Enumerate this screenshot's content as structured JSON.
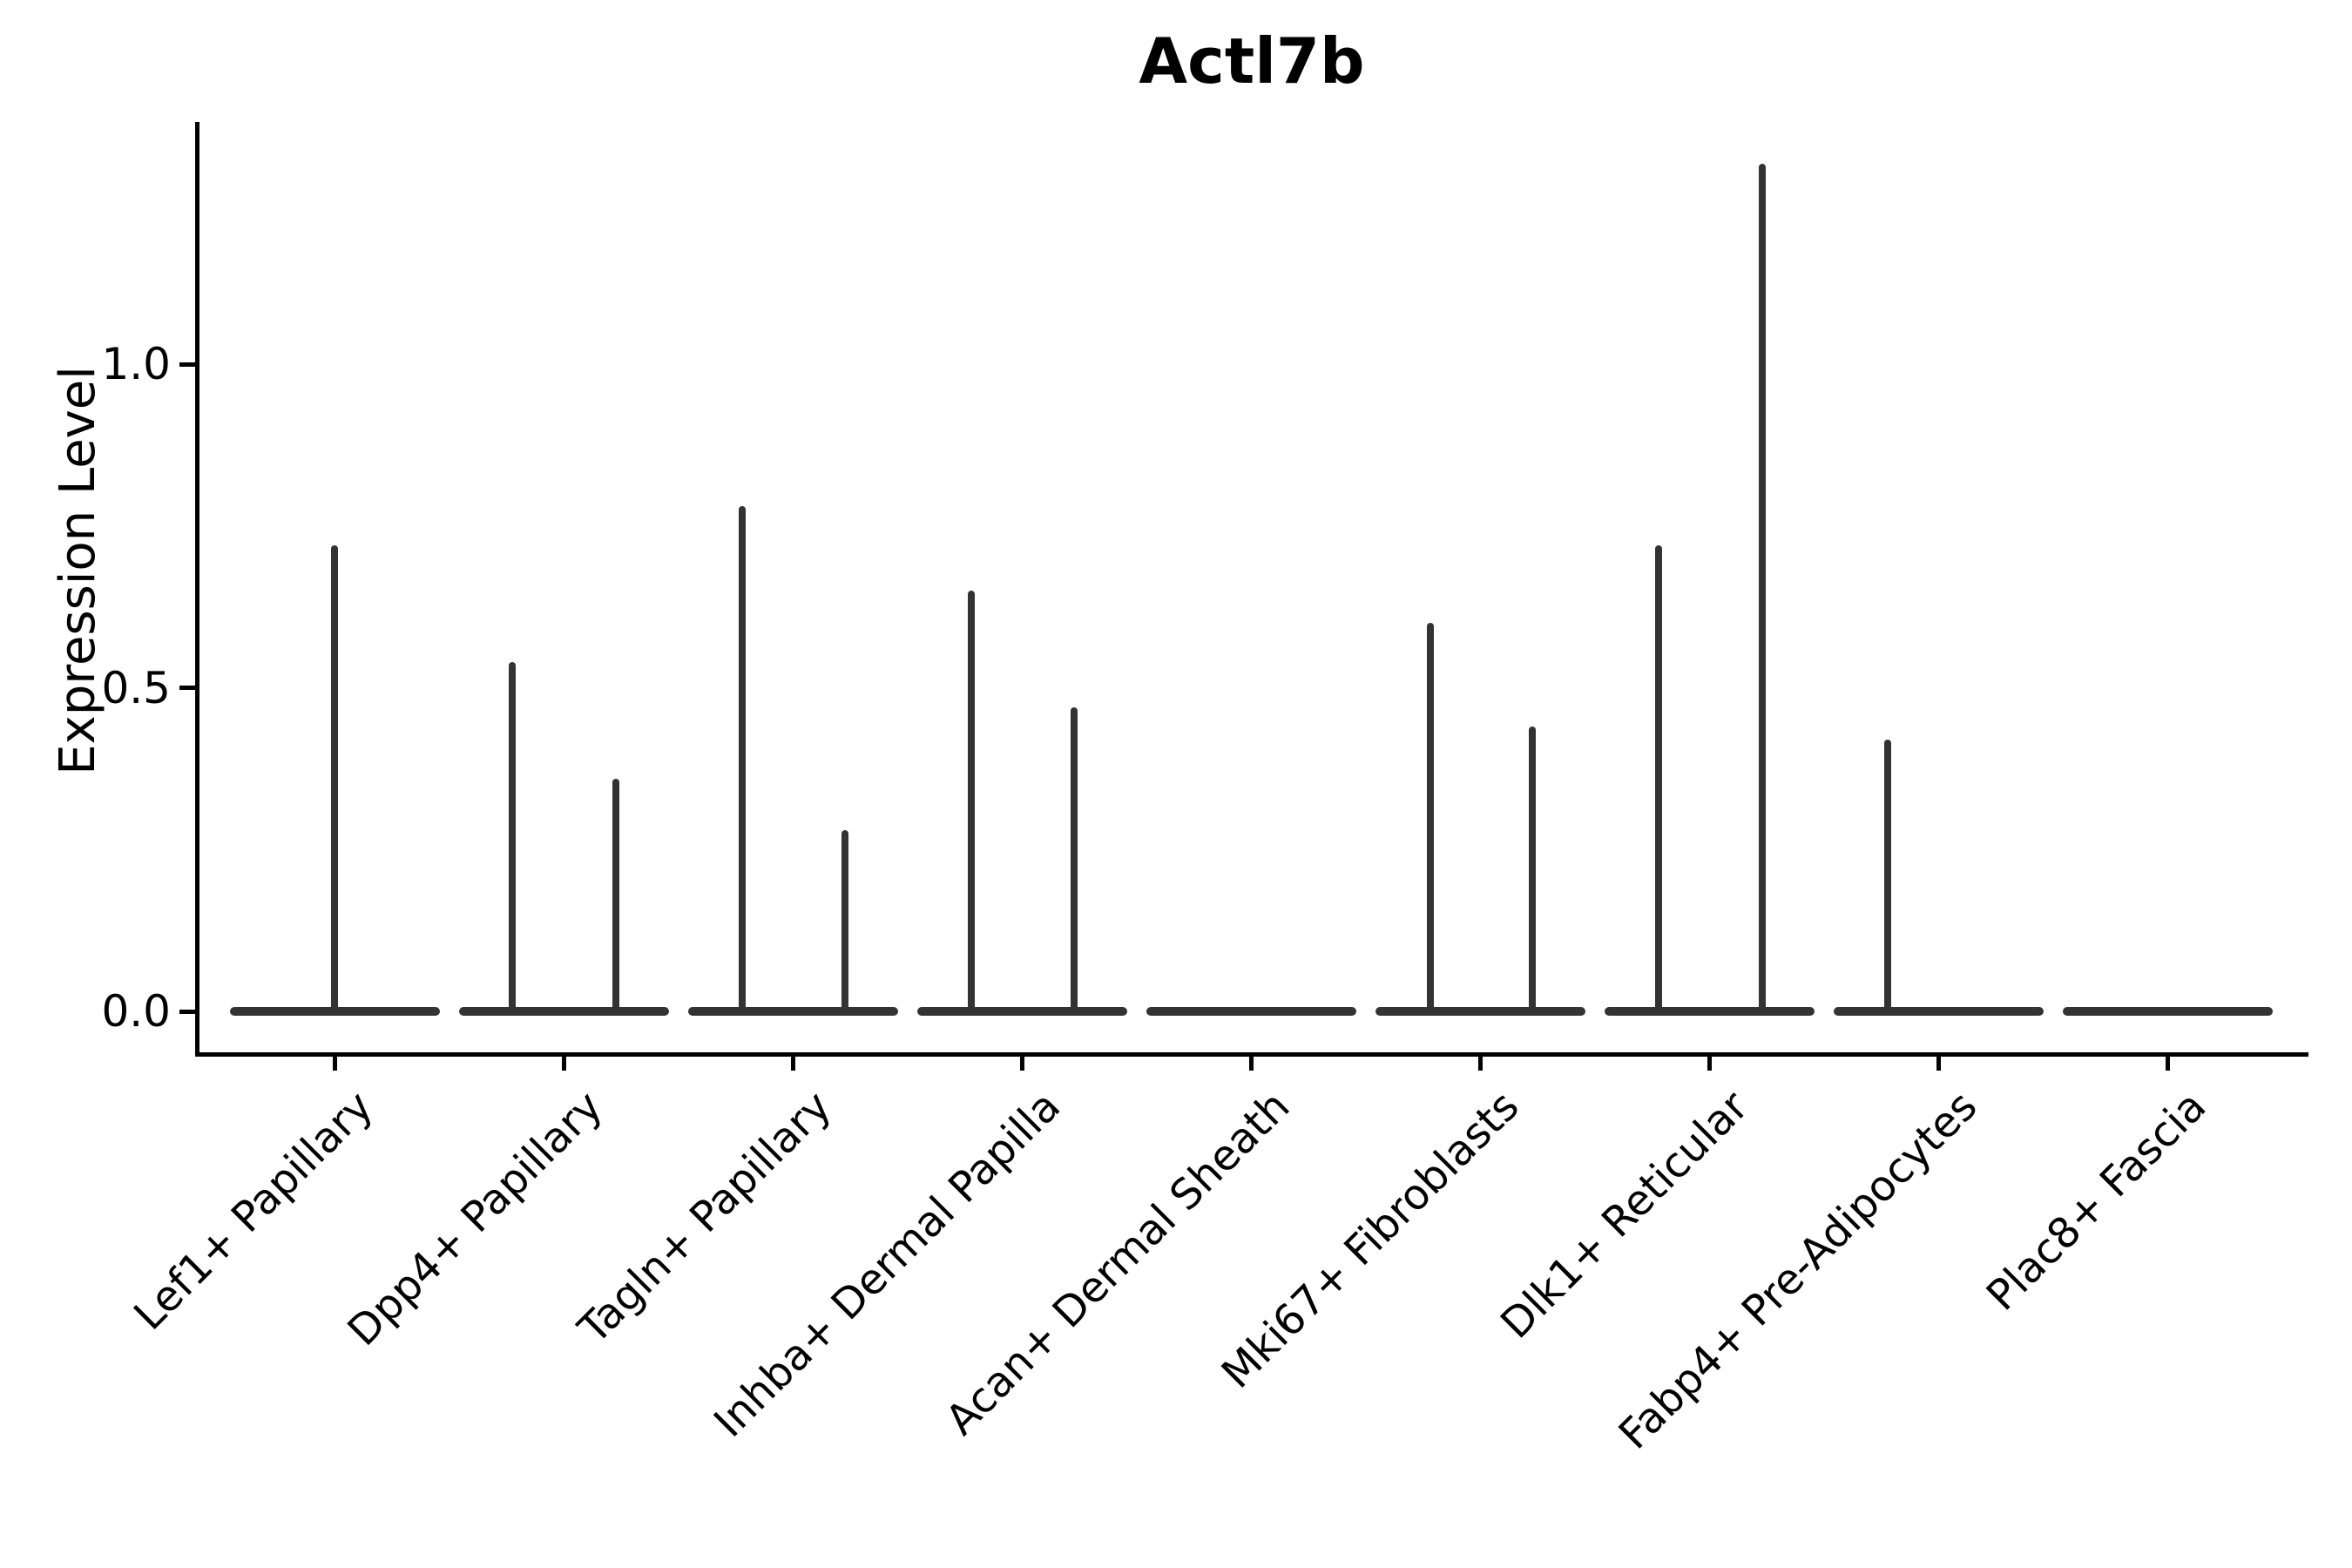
{
  "title": "Actl7b",
  "axes": {
    "ylabel": "Expression Level",
    "yticks": [
      {
        "label": "1.0",
        "value": 1.0
      },
      {
        "label": "0.5",
        "value": 0.5
      },
      {
        "label": "0.0",
        "value": 0.0
      }
    ]
  },
  "chart_data": {
    "type": "violin",
    "title": "Actl7b",
    "xlabel": "",
    "ylabel": "Expression Level",
    "ylim": [
      -0.06,
      1.37
    ],
    "yticks": [
      0.0,
      0.5,
      1.0
    ],
    "grid": false,
    "legend": "none",
    "categories": [
      "Lef1+ Papillary",
      "Dpp4+ Papillary",
      "Tagln+ Papillary",
      "Inhba+ Dermal Papilla",
      "Acan+ Dermal Sheath",
      "Mki67+ Fibroblasts",
      "Dlk1+ Reticular",
      "Fabp4+ Pre-Adipocytes",
      "Plac8+ Fascia"
    ],
    "description": "Violin plot of Actl7b expression; every population has a flat violin body at expression 0 with thin vertical density tails reaching the listed maxima.",
    "violins": [
      {
        "category": "Lef1+ Papillary",
        "body_value": 0.0,
        "tails": [
          {
            "dx": 0,
            "value": 0.72
          }
        ]
      },
      {
        "category": "Dpp4+ Papillary",
        "body_value": 0.0,
        "tails": [
          {
            "dx": -59,
            "value": 0.54
          },
          {
            "dx": 60,
            "value": 0.36
          }
        ]
      },
      {
        "category": "Tagln+ Papillary",
        "body_value": 0.0,
        "tails": [
          {
            "dx": -58,
            "value": 0.78
          },
          {
            "dx": 60,
            "value": 0.28
          }
        ]
      },
      {
        "category": "Inhba+ Dermal Papilla",
        "body_value": 0.0,
        "tails": [
          {
            "dx": -58,
            "value": 0.65
          },
          {
            "dx": 60,
            "value": 0.47
          }
        ]
      },
      {
        "category": "Acan+ Dermal Sheath",
        "body_value": 0.0,
        "tails": []
      },
      {
        "category": "Mki67+ Fibroblasts",
        "body_value": 0.0,
        "tails": [
          {
            "dx": -57,
            "value": 0.6
          },
          {
            "dx": 60,
            "value": 0.44
          }
        ]
      },
      {
        "category": "Dlk1+ Reticular",
        "body_value": 0.0,
        "tails": [
          {
            "dx": -58,
            "value": 0.72
          },
          {
            "dx": 61,
            "value": 1.31
          }
        ]
      },
      {
        "category": "Fabp4+ Pre-Adipocytes",
        "body_value": 0.0,
        "tails": [
          {
            "dx": -58,
            "value": 0.42
          }
        ]
      },
      {
        "category": "Plac8+ Fascia",
        "body_value": 0.0,
        "tails": []
      }
    ],
    "colors": {
      "violin": "#333333",
      "axis": "#000000",
      "text": "#000000",
      "background": "#ffffff"
    }
  }
}
